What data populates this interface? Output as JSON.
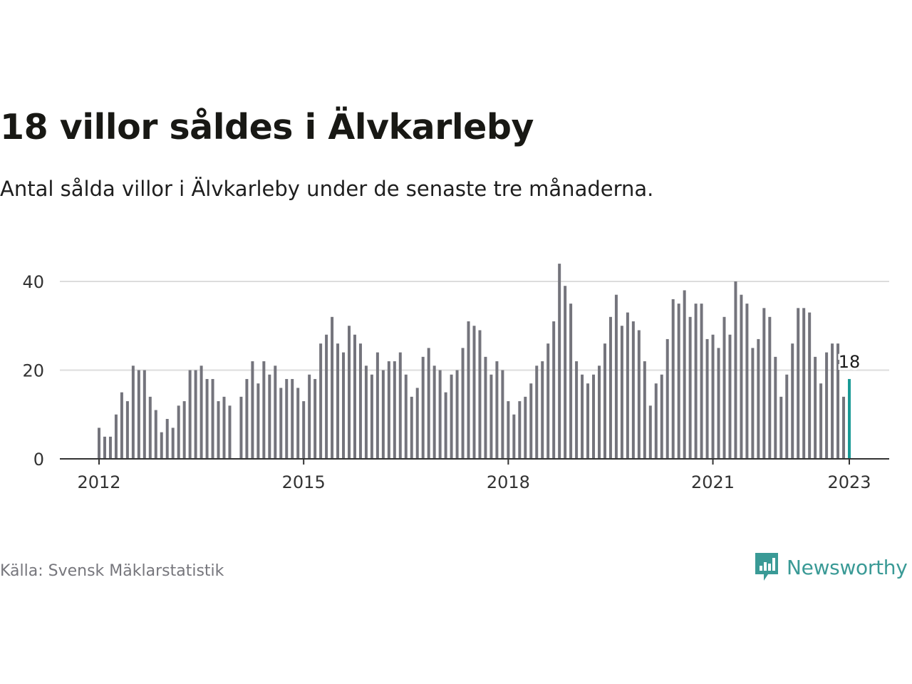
{
  "title": "18 villor såldes i Älvkarleby",
  "subtitle": "Antal sålda villor i Älvkarleby under de senaste tre månaderna.",
  "source": "Källa: Svensk Mäklarstatistik",
  "brand": {
    "name": "Newsworthy",
    "icon": "newsworthy-logo-icon",
    "color": "#3a9a96"
  },
  "colors": {
    "bar": "#74747c",
    "highlight": "#1a9a96",
    "grid": "#dcdcdc",
    "axis": "#333333"
  },
  "chart_data": {
    "type": "bar",
    "x_start": "2012-01",
    "frequency": "monthly",
    "ylim": [
      0,
      44
    ],
    "yticks": [
      0,
      20,
      40
    ],
    "xticks": [
      "2012",
      "2015",
      "2018",
      "2021",
      "2023"
    ],
    "grid": true,
    "highlight_last": true,
    "annotation": "18",
    "values": [
      7,
      5,
      5,
      10,
      15,
      13,
      21,
      20,
      20,
      14,
      11,
      6,
      9,
      7,
      12,
      13,
      20,
      20,
      21,
      18,
      18,
      13,
      14,
      12,
      null,
      14,
      18,
      22,
      17,
      22,
      19,
      21,
      16,
      18,
      18,
      16,
      13,
      19,
      18,
      26,
      28,
      32,
      26,
      24,
      30,
      28,
      26,
      21,
      19,
      24,
      20,
      22,
      22,
      24,
      19,
      14,
      16,
      23,
      25,
      21,
      20,
      15,
      19,
      20,
      25,
      31,
      30,
      29,
      23,
      19,
      22,
      20,
      13,
      10,
      13,
      14,
      17,
      21,
      22,
      26,
      31,
      44,
      39,
      35,
      22,
      19,
      17,
      19,
      21,
      26,
      32,
      37,
      30,
      33,
      31,
      29,
      22,
      12,
      17,
      19,
      27,
      36,
      35,
      38,
      32,
      35,
      35,
      27,
      28,
      25,
      32,
      28,
      40,
      37,
      35,
      25,
      27,
      34,
      32,
      23,
      14,
      19,
      26,
      34,
      34,
      33,
      23,
      17,
      24,
      26,
      26,
      14,
      18
    ]
  }
}
